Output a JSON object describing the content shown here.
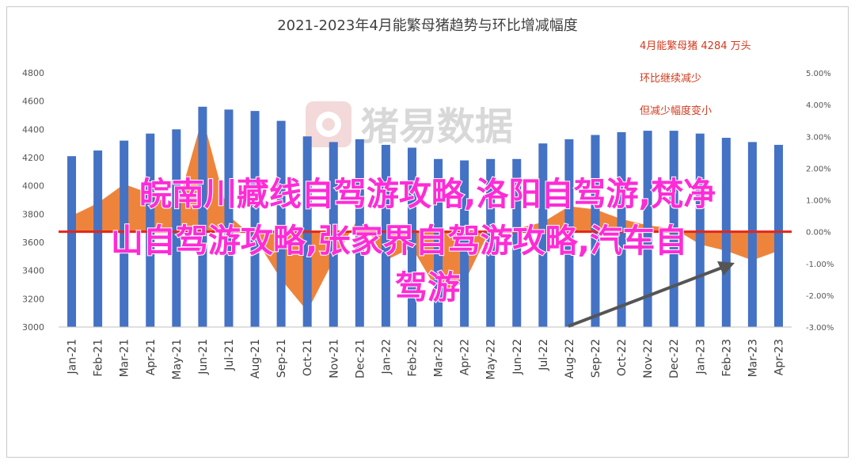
{
  "chart_data": {
    "type": "bar",
    "title": "2021-2023年4月能繁母猪趋势与环比增减幅度",
    "categories": [
      "Jan-21",
      "Feb-21",
      "Mar-21",
      "Apr-21",
      "May-21",
      "Jun-21",
      "Jul-21",
      "Aug-21",
      "Sep-21",
      "Oct-21",
      "Nov-21",
      "Dec-21",
      "Jan-22",
      "Feb-22",
      "Mar-22",
      "Apr-22",
      "May-22",
      "Jun-22",
      "Jul-22",
      "Aug-22",
      "Sep-22",
      "Oct-22",
      "Nov-22",
      "Dec-22",
      "Jan-23",
      "Feb-23",
      "Mar-23",
      "Apr-23"
    ],
    "series": [
      {
        "axis": "left",
        "kind": "bar",
        "color": "#4472c4",
        "values": [
          4210,
          4250,
          4320,
          4370,
          4400,
          4560,
          4540,
          4530,
          4460,
          4350,
          4310,
          4330,
          4290,
          4270,
          4190,
          4180,
          4190,
          4190,
          4300,
          4330,
          4360,
          4380,
          4390,
          4390,
          4370,
          4340,
          4310,
          4290
        ]
      },
      {
        "axis": "right",
        "kind": "area",
        "color": "#ed7d31",
        "values": [
          0.5,
          0.9,
          1.5,
          1.2,
          0.7,
          3.6,
          0.5,
          -0.2,
          -1.5,
          -2.5,
          -0.9,
          0.5,
          -0.9,
          -0.5,
          -1.9,
          -1.6,
          0.1,
          0.1,
          0.3,
          0.8,
          0.7,
          0.4,
          0.2,
          0.1,
          -0.4,
          -0.6,
          -0.9,
          -0.6
        ]
      }
    ],
    "y_left": {
      "min": 3000,
      "max": 4800,
      "step": 200,
      "ticks": [
        "3000",
        "3200",
        "3400",
        "3600",
        "3800",
        "4000",
        "4200",
        "4400",
        "4600",
        "4800"
      ]
    },
    "y_right": {
      "min": -3,
      "max": 5,
      "step": 1,
      "ticks": [
        "-3.00%",
        "-2.00%",
        "-1.00%",
        "0.00%",
        "1.00%",
        "2.00%",
        "3.00%",
        "4.00%",
        "5.00%"
      ]
    },
    "zero_line_color": "#e3261a",
    "grid": false,
    "annotations": [
      "4月能繁母猪 4284 万头",
      "环比继续减少",
      "但减少幅度变小"
    ],
    "watermark": "猪易数据",
    "overlay_text": [
      "皖南川藏线自驾游攻略,洛阳自驾游,梵净",
      "山自驾游攻略,张家界自驾游攻略,汽车自",
      "驾游"
    ]
  }
}
